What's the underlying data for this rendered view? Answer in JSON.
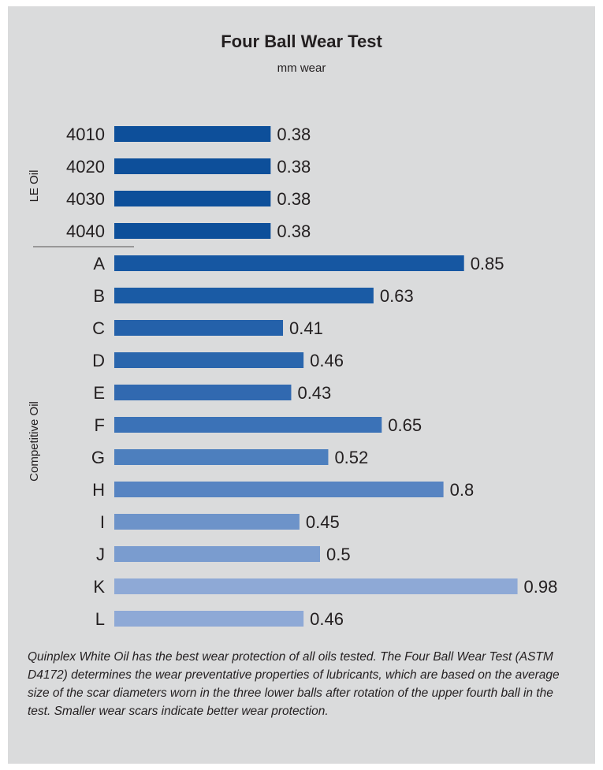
{
  "chart_data": {
    "type": "bar",
    "orientation": "horizontal",
    "title": "Four Ball Wear Test",
    "subtitle": "mm wear",
    "categories": [
      "4010",
      "4020",
      "4030",
      "4040",
      "A",
      "B",
      "C",
      "D",
      "E",
      "F",
      "G",
      "H",
      "I",
      "J",
      "K",
      "L"
    ],
    "values": [
      0.38,
      0.38,
      0.38,
      0.38,
      0.85,
      0.63,
      0.41,
      0.46,
      0.43,
      0.65,
      0.52,
      0.8,
      0.45,
      0.5,
      0.98,
      0.46
    ],
    "value_labels": [
      "0.38",
      "0.38",
      "0.38",
      "0.38",
      "0.85",
      "0.63",
      "0.41",
      "0.46",
      "0.43",
      "0.65",
      "0.52",
      "0.8",
      "0.45",
      "0.5",
      "0.98",
      "0.46"
    ],
    "groups": [
      {
        "name": "LE Oil",
        "categories": [
          "4010",
          "4020",
          "4030",
          "4040"
        ]
      },
      {
        "name": "Competitive Oil",
        "categories": [
          "A",
          "B",
          "C",
          "D",
          "E",
          "F",
          "G",
          "H",
          "I",
          "J",
          "K",
          "L"
        ]
      }
    ],
    "bar_colors": [
      "#0d4f9a",
      "#0d4f9a",
      "#0d4f9a",
      "#0d4f9a",
      "#1657a2",
      "#1a5ba5",
      "#2461aa",
      "#2a66ad",
      "#3169b0",
      "#3b72b7",
      "#4d7fbe",
      "#5784c2",
      "#6d93c9",
      "#7a9ccf",
      "#8ea9d6",
      "#8ea9d6"
    ],
    "xlim": [
      0,
      1
    ],
    "grid": false,
    "legend": "none"
  },
  "caption": "Quinplex White Oil has the best wear protection of all oils tested. The Four Ball Wear Test (ASTM D4172) determines the wear preventative properties of lubricants, which are based on the average size of the scar diameters worn in the three lower balls after rotation of the upper fourth ball in the test. Smaller wear scars indicate better wear protection.",
  "colors": {
    "panel_background": "#dadbdc",
    "text": "#231f20",
    "separator": "#555555"
  }
}
